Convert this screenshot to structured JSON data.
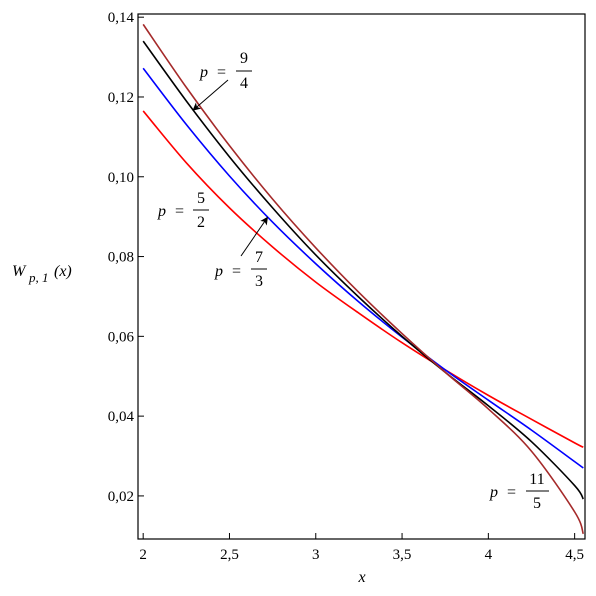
{
  "chart_data": {
    "type": "line",
    "xlabel": "x",
    "ylabel": {
      "main": "W",
      "sub": "p, 1",
      "arg": "(x)"
    },
    "xlim": [
      1.97,
      4.56
    ],
    "ylim": [
      0.0092,
      0.1408
    ],
    "xticks": [
      {
        "value": 2,
        "label": "2"
      },
      {
        "value": 2.5,
        "label": "2,5"
      },
      {
        "value": 3,
        "label": "3"
      },
      {
        "value": 3.5,
        "label": "3,5"
      },
      {
        "value": 4,
        "label": "4"
      },
      {
        "value": 4.5,
        "label": "4,5"
      }
    ],
    "yticks": [
      {
        "value": 0.02,
        "label": "0,02"
      },
      {
        "value": 0.04,
        "label": "0,04"
      },
      {
        "value": 0.06,
        "label": "0,06"
      },
      {
        "value": 0.08,
        "label": "0,08"
      },
      {
        "value": 0.1,
        "label": "0,10"
      },
      {
        "value": 0.12,
        "label": "0,12"
      },
      {
        "value": 0.14,
        "label": "0,14"
      }
    ],
    "grid": false,
    "legend": "none",
    "series": [
      {
        "key": "p52",
        "color": "#ff0000",
        "x": [
          2.0,
          2.25,
          2.5,
          2.75,
          3.0,
          3.25,
          3.5,
          3.75,
          4.0,
          4.25,
          4.5,
          4.55
        ],
        "y": [
          0.1165,
          0.1035,
          0.0922,
          0.0824,
          0.0736,
          0.0658,
          0.0584,
          0.0516,
          0.0452,
          0.0392,
          0.0333,
          0.0322
        ]
      },
      {
        "key": "p73",
        "color": "#0000ff",
        "x": [
          2.0,
          2.25,
          2.5,
          2.75,
          3.0,
          3.25,
          3.5,
          3.75,
          4.0,
          4.25,
          4.5,
          4.55
        ],
        "y": [
          0.1272,
          0.1131,
          0.1002,
          0.0886,
          0.0782,
          0.0686,
          0.0598,
          0.0516,
          0.044,
          0.0365,
          0.0286,
          0.027
        ]
      },
      {
        "key": "p94",
        "color": "#000000",
        "x": [
          2.0,
          2.25,
          2.5,
          2.75,
          3.0,
          3.25,
          3.5,
          3.75,
          4.0,
          4.25,
          4.5,
          4.55
        ],
        "y": [
          0.134,
          0.119,
          0.105,
          0.0922,
          0.0804,
          0.0698,
          0.06,
          0.051,
          0.0426,
          0.0336,
          0.0226,
          0.0192
        ]
      },
      {
        "key": "p115",
        "color": "#a52a2a",
        "x": [
          2.0,
          2.25,
          2.5,
          2.75,
          3.0,
          3.25,
          3.5,
          3.75,
          4.0,
          4.25,
          4.5,
          4.55
        ],
        "y": [
          0.1382,
          0.1224,
          0.1078,
          0.0944,
          0.0822,
          0.071,
          0.0607,
          0.051,
          0.0418,
          0.0312,
          0.016,
          0.0105
        ]
      }
    ],
    "annotations": [
      {
        "key": "p52",
        "var": "p",
        "eq": "=",
        "num": "5",
        "den": "2",
        "arrow": false
      },
      {
        "key": "p73",
        "var": "p",
        "eq": "=",
        "num": "7",
        "den": "3",
        "arrow": true,
        "point": [
          2.72,
          0.0898
        ]
      },
      {
        "key": "p94",
        "var": "p",
        "eq": "=",
        "num": "9",
        "den": "4",
        "arrow": true,
        "point": [
          2.29,
          0.1167
        ]
      },
      {
        "key": "p115",
        "var": "p",
        "eq": "=",
        "num": "11",
        "den": "5",
        "arrow": false
      }
    ]
  }
}
